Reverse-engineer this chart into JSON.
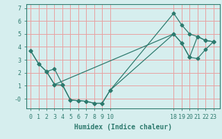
{
  "xlabel": "Humidex (Indice chaleur)",
  "bg_color": "#d6eeee",
  "line_color": "#2d7a6e",
  "grid_color": "#e8a0a0",
  "series": [
    {
      "x": [
        0,
        1,
        2,
        3,
        4,
        5,
        6,
        7,
        8,
        9,
        10,
        18,
        19,
        20,
        21,
        22,
        23
      ],
      "y": [
        3.7,
        2.7,
        2.1,
        2.3,
        1.1,
        -0.1,
        -0.15,
        -0.2,
        -0.35,
        -0.35,
        0.65,
        6.6,
        5.7,
        5.0,
        4.8,
        4.5,
        4.4
      ]
    },
    {
      "x": [
        2,
        3,
        4,
        5,
        6,
        7,
        8,
        9,
        10,
        18,
        19,
        20,
        21,
        22,
        23
      ],
      "y": [
        2.1,
        1.1,
        1.05,
        -0.1,
        -0.15,
        -0.2,
        -0.35,
        -0.35,
        0.65,
        5.0,
        4.3,
        3.2,
        3.1,
        3.8,
        4.4
      ]
    },
    {
      "x": [
        0,
        1,
        2,
        3,
        18,
        19,
        20,
        21,
        22,
        23
      ],
      "y": [
        3.7,
        2.7,
        2.1,
        1.1,
        5.0,
        4.3,
        3.2,
        4.8,
        4.5,
        4.4
      ]
    }
  ],
  "xlim": [
    -0.5,
    23.8
  ],
  "ylim": [
    -0.75,
    7.3
  ],
  "xticks": [
    0,
    1,
    2,
    3,
    4,
    5,
    6,
    7,
    8,
    9,
    10,
    18,
    19,
    20,
    21,
    22,
    23
  ],
  "yticks": [
    0,
    1,
    2,
    3,
    4,
    5,
    6,
    7
  ],
  "ytick_labels": [
    "-0",
    "1",
    "2",
    "3",
    "4",
    "5",
    "6",
    "7"
  ],
  "marker_size": 2.5,
  "line_width": 0.9,
  "xlabel_fontsize": 7.0,
  "tick_fontsize": 6.0
}
